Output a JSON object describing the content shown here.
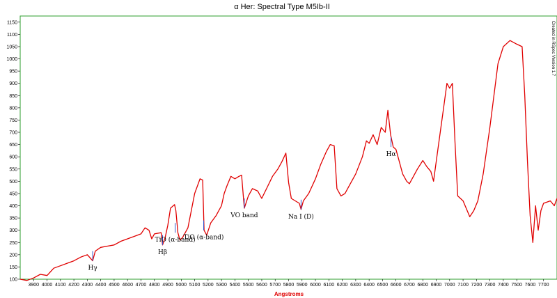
{
  "chart_data": {
    "type": "line",
    "title": "α Her: Spectral Type M5Ib-II",
    "xlabel": "Angstroms",
    "ylabel": "",
    "side_note": "Created in RSpec Version 1.7",
    "xlim": [
      3800,
      7800
    ],
    "ylim": [
      100,
      1175
    ],
    "x_ticks": [
      3900,
      4000,
      4100,
      4200,
      4300,
      4400,
      4500,
      4600,
      4700,
      4800,
      4900,
      5000,
      5100,
      5200,
      5300,
      5400,
      5500,
      5600,
      5700,
      5800,
      5900,
      6000,
      6100,
      6200,
      6300,
      6400,
      6500,
      6600,
      6700,
      6800,
      6900,
      7000,
      7100,
      7200,
      7300,
      7400,
      7500,
      7600,
      7700
    ],
    "y_ticks": [
      100,
      150,
      200,
      250,
      300,
      350,
      400,
      450,
      500,
      550,
      600,
      650,
      700,
      750,
      800,
      850,
      900,
      950,
      1000,
      1050,
      1100,
      1150
    ],
    "series": [
      {
        "color": "#e00000",
        "points": [
          [
            3800,
            100
          ],
          [
            3850,
            95
          ],
          [
            3900,
            105
          ],
          [
            3950,
            120
          ],
          [
            4000,
            115
          ],
          [
            4050,
            145
          ],
          [
            4100,
            155
          ],
          [
            4150,
            165
          ],
          [
            4200,
            175
          ],
          [
            4250,
            190
          ],
          [
            4300,
            200
          ],
          [
            4340,
            175
          ],
          [
            4360,
            215
          ],
          [
            4400,
            230
          ],
          [
            4450,
            235
          ],
          [
            4500,
            240
          ],
          [
            4550,
            255
          ],
          [
            4600,
            265
          ],
          [
            4650,
            275
          ],
          [
            4700,
            285
          ],
          [
            4730,
            310
          ],
          [
            4760,
            300
          ],
          [
            4780,
            265
          ],
          [
            4800,
            285
          ],
          [
            4850,
            290
          ],
          [
            4861,
            240
          ],
          [
            4880,
            270
          ],
          [
            4900,
            320
          ],
          [
            4920,
            390
          ],
          [
            4950,
            405
          ],
          [
            4960,
            380
          ],
          [
            4975,
            290
          ],
          [
            4990,
            260
          ],
          [
            5010,
            270
          ],
          [
            5050,
            310
          ],
          [
            5100,
            450
          ],
          [
            5140,
            510
          ],
          [
            5160,
            505
          ],
          [
            5170,
            300
          ],
          [
            5190,
            280
          ],
          [
            5220,
            330
          ],
          [
            5260,
            360
          ],
          [
            5300,
            400
          ],
          [
            5320,
            450
          ],
          [
            5340,
            480
          ],
          [
            5370,
            520
          ],
          [
            5400,
            510
          ],
          [
            5430,
            520
          ],
          [
            5450,
            525
          ],
          [
            5470,
            390
          ],
          [
            5500,
            440
          ],
          [
            5530,
            470
          ],
          [
            5570,
            460
          ],
          [
            5600,
            430
          ],
          [
            5640,
            475
          ],
          [
            5680,
            520
          ],
          [
            5720,
            550
          ],
          [
            5750,
            580
          ],
          [
            5780,
            615
          ],
          [
            5800,
            495
          ],
          [
            5820,
            430
          ],
          [
            5850,
            420
          ],
          [
            5880,
            410
          ],
          [
            5893,
            385
          ],
          [
            5910,
            420
          ],
          [
            5950,
            450
          ],
          [
            6000,
            510
          ],
          [
            6040,
            570
          ],
          [
            6080,
            620
          ],
          [
            6110,
            650
          ],
          [
            6140,
            645
          ],
          [
            6160,
            470
          ],
          [
            6190,
            440
          ],
          [
            6220,
            450
          ],
          [
            6250,
            480
          ],
          [
            6300,
            530
          ],
          [
            6350,
            600
          ],
          [
            6380,
            665
          ],
          [
            6400,
            655
          ],
          [
            6430,
            690
          ],
          [
            6460,
            650
          ],
          [
            6490,
            720
          ],
          [
            6520,
            700
          ],
          [
            6540,
            790
          ],
          [
            6560,
            690
          ],
          [
            6580,
            640
          ],
          [
            6600,
            630
          ],
          [
            6620,
            590
          ],
          [
            6650,
            530
          ],
          [
            6680,
            500
          ],
          [
            6700,
            490
          ],
          [
            6730,
            520
          ],
          [
            6760,
            550
          ],
          [
            6800,
            585
          ],
          [
            6830,
            560
          ],
          [
            6860,
            540
          ],
          [
            6880,
            500
          ],
          [
            6900,
            580
          ],
          [
            6930,
            700
          ],
          [
            6960,
            820
          ],
          [
            6980,
            900
          ],
          [
            7000,
            880
          ],
          [
            7020,
            900
          ],
          [
            7040,
            660
          ],
          [
            7060,
            440
          ],
          [
            7100,
            420
          ],
          [
            7150,
            355
          ],
          [
            7180,
            380
          ],
          [
            7210,
            420
          ],
          [
            7250,
            530
          ],
          [
            7300,
            720
          ],
          [
            7330,
            850
          ],
          [
            7360,
            980
          ],
          [
            7400,
            1050
          ],
          [
            7450,
            1075
          ],
          [
            7500,
            1060
          ],
          [
            7540,
            1050
          ],
          [
            7560,
            850
          ],
          [
            7580,
            580
          ],
          [
            7600,
            360
          ],
          [
            7620,
            250
          ],
          [
            7640,
            400
          ],
          [
            7660,
            300
          ],
          [
            7680,
            380
          ],
          [
            7700,
            410
          ],
          [
            7750,
            420
          ],
          [
            7780,
            400
          ],
          [
            7800,
            430
          ]
        ]
      }
    ],
    "annotations": [
      {
        "label": "Hγ",
        "x": 4340,
        "y": 175
      },
      {
        "label": "Hβ",
        "x": 4861,
        "y": 240
      },
      {
        "label": "TiO (α-band)",
        "x": 4955,
        "y": 290
      },
      {
        "label": "TiO (α-band)",
        "x": 5167,
        "y": 300
      },
      {
        "label": "VO band",
        "x": 5470,
        "y": 390
      },
      {
        "label": "Na I (D)",
        "x": 5893,
        "y": 385
      },
      {
        "label": "Hα",
        "x": 6563,
        "y": 640
      }
    ],
    "colors": {
      "line": "#e00000",
      "axis_label": "#e00000",
      "frame": "#2e9e2e",
      "marker": "#3355cc"
    },
    "grid": false
  }
}
